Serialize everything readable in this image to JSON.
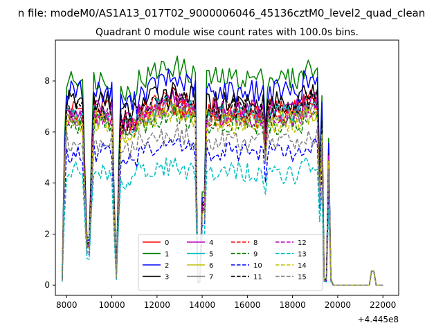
{
  "chart_data": {
    "type": "line",
    "suptitle": "n file: modeM0/AS1A13_017T02_9000006046_45136cztM0_level2_quad_clean",
    "title": "Quadrant 0 module wise count rates with 100.0s bins.",
    "xlabel": "",
    "ylabel": "",
    "x_offset_label": "+4.445e8",
    "xlim": [
      7500,
      22700
    ],
    "ylim": [
      -0.4,
      9.6
    ],
    "xticks": [
      8000,
      10000,
      12000,
      14000,
      16000,
      18000,
      20000,
      22000
    ],
    "xtick_labels": [
      "8000",
      "10000",
      "12000",
      "14000",
      "16000",
      "18000",
      "20000",
      "22000"
    ],
    "yticks": [
      0,
      2,
      4,
      6,
      8
    ],
    "ytick_labels": [
      "0",
      "2",
      "4",
      "6",
      "8"
    ],
    "grid": false,
    "legend_placement": "lower center",
    "legend_columns": 4,
    "x_range_of_samples": [
      7800,
      22000
    ],
    "sample_step_s": 100,
    "series": [
      {
        "name": "0",
        "color": "#ff0000",
        "dash": "solid",
        "level": 6.9,
        "amp": 0.45
      },
      {
        "name": "1",
        "color": "#008000",
        "dash": "solid",
        "level": 8.1,
        "amp": 0.45
      },
      {
        "name": "2",
        "color": "#0000ff",
        "dash": "solid",
        "level": 7.6,
        "amp": 0.45
      },
      {
        "name": "3",
        "color": "#000000",
        "dash": "solid",
        "level": 7.2,
        "amp": 0.45
      },
      {
        "name": "4",
        "color": "#bf00bf",
        "dash": "solid",
        "level": 6.9,
        "amp": 0.4
      },
      {
        "name": "5",
        "color": "#00bfbf",
        "dash": "solid",
        "level": 6.7,
        "amp": 0.4
      },
      {
        "name": "6",
        "color": "#bfbf00",
        "dash": "solid",
        "level": 6.5,
        "amp": 0.4
      },
      {
        "name": "7",
        "color": "#808080",
        "dash": "solid",
        "level": 6.6,
        "amp": 0.4
      },
      {
        "name": "8",
        "color": "#ff0000",
        "dash": "dashed",
        "level": 6.6,
        "amp": 0.4
      },
      {
        "name": "9",
        "color": "#008000",
        "dash": "dashed",
        "level": 6.3,
        "amp": 0.4
      },
      {
        "name": "10",
        "color": "#0000ff",
        "dash": "dashed",
        "level": 5.2,
        "amp": 0.4
      },
      {
        "name": "11",
        "color": "#000000",
        "dash": "dashed",
        "level": 6.9,
        "amp": 0.45
      },
      {
        "name": "12",
        "color": "#bf00bf",
        "dash": "dashed",
        "level": 6.6,
        "amp": 0.4
      },
      {
        "name": "13",
        "color": "#00bfbf",
        "dash": "dashed",
        "level": 4.4,
        "amp": 0.45
      },
      {
        "name": "14",
        "color": "#bfbf00",
        "dash": "dashed",
        "level": 6.3,
        "amp": 0.4
      },
      {
        "name": "15",
        "color": "#808080",
        "dash": "dashed",
        "level": 5.6,
        "amp": 0.45
      }
    ]
  }
}
